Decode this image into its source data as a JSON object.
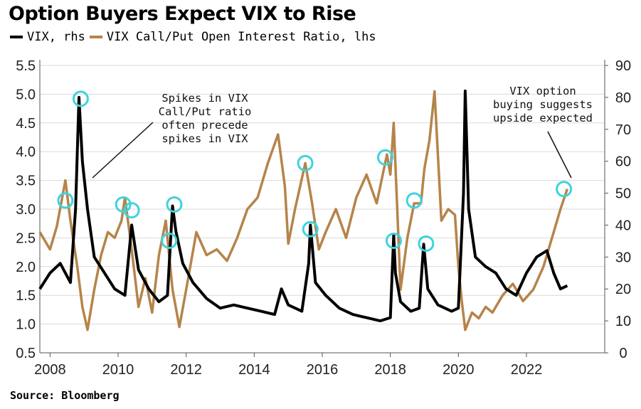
{
  "title": "Option Buyers Expect VIX to Rise",
  "legend": {
    "vix_label": "VIX, rhs",
    "ratio_label": "VIX Call/Put Open Interest Ratio, lhs"
  },
  "source": "Source: Bloomberg",
  "colors": {
    "vix": "#000000",
    "ratio": "#b5844a",
    "circle": "#3fd3dc",
    "grid": "#d9d9d9"
  },
  "annotations": {
    "left": [
      "Spikes in VIX",
      "Call/Put ratio",
      "often precede",
      "spikes in VIX"
    ],
    "right": [
      "VIX option",
      "buying suggests",
      "upside expected"
    ]
  },
  "chart_data": {
    "type": "line",
    "x_range": [
      2007.7,
      2024.3
    ],
    "x_ticks": [
      2008,
      2010,
      2012,
      2014,
      2016,
      2018,
      2020,
      2022
    ],
    "left_axis": {
      "label": "VIX Call/Put Open Interest Ratio",
      "range": [
        0.5,
        5.5
      ],
      "ticks": [
        "0.5",
        "1.0",
        "1.5",
        "2.0",
        "2.5",
        "3.0",
        "3.5",
        "4.0",
        "4.5",
        "5.0",
        "5.5"
      ]
    },
    "right_axis": {
      "label": "VIX",
      "range": [
        0,
        90
      ],
      "ticks": [
        "0",
        "10",
        "20",
        "30",
        "40",
        "50",
        "60",
        "70",
        "80",
        "90"
      ]
    },
    "series": [
      {
        "name": "VIX Call/Put Open Interest Ratio",
        "axis": "left",
        "x": [
          2007.7,
          2008.0,
          2008.2,
          2008.45,
          2008.6,
          2008.8,
          2008.95,
          2009.1,
          2009.3,
          2009.5,
          2009.7,
          2009.9,
          2010.1,
          2010.2,
          2010.4,
          2010.6,
          2010.8,
          2011.0,
          2011.2,
          2011.4,
          2011.6,
          2011.8,
          2012.0,
          2012.3,
          2012.6,
          2012.9,
          2013.2,
          2013.5,
          2013.8,
          2014.1,
          2014.4,
          2014.7,
          2014.9,
          2015.0,
          2015.2,
          2015.5,
          2015.7,
          2015.9,
          2016.1,
          2016.4,
          2016.7,
          2017.0,
          2017.3,
          2017.6,
          2017.9,
          2018.0,
          2018.1,
          2018.3,
          2018.5,
          2018.7,
          2018.9,
          2019.0,
          2019.15,
          2019.3,
          2019.5,
          2019.7,
          2019.9,
          2020.0,
          2020.1,
          2020.2,
          2020.4,
          2020.6,
          2020.8,
          2021.0,
          2021.3,
          2021.6,
          2021.9,
          2022.2,
          2022.5,
          2022.8,
          2023.0,
          2023.2
        ],
        "values": [
          2.6,
          2.3,
          2.7,
          3.5,
          2.8,
          2.0,
          1.3,
          0.9,
          1.6,
          2.2,
          2.6,
          2.5,
          2.8,
          3.2,
          2.3,
          1.3,
          1.8,
          1.2,
          2.2,
          2.8,
          1.6,
          0.95,
          1.6,
          2.6,
          2.2,
          2.3,
          2.1,
          2.5,
          3.0,
          3.2,
          3.8,
          4.3,
          3.4,
          2.4,
          3.0,
          3.8,
          3.1,
          2.3,
          2.6,
          3.0,
          2.5,
          3.2,
          3.6,
          3.1,
          3.95,
          3.6,
          4.5,
          1.6,
          2.5,
          3.1,
          3.1,
          3.7,
          4.2,
          5.05,
          2.8,
          3.0,
          2.9,
          2.0,
          1.4,
          0.9,
          1.2,
          1.1,
          1.3,
          1.2,
          1.5,
          1.7,
          1.4,
          1.6,
          2.0,
          2.6,
          3.0,
          3.35
        ]
      },
      {
        "name": "VIX",
        "axis": "right",
        "x": [
          2007.7,
          2008.0,
          2008.3,
          2008.6,
          2008.75,
          2008.85,
          2008.95,
          2009.1,
          2009.3,
          2009.6,
          2009.9,
          2010.2,
          2010.4,
          2010.6,
          2010.9,
          2011.2,
          2011.45,
          2011.6,
          2011.7,
          2011.9,
          2012.2,
          2012.6,
          2013.0,
          2013.4,
          2013.8,
          2014.2,
          2014.6,
          2014.8,
          2015.0,
          2015.4,
          2015.6,
          2015.65,
          2015.8,
          2016.1,
          2016.5,
          2016.9,
          2017.3,
          2017.7,
          2018.0,
          2018.1,
          2018.15,
          2018.3,
          2018.6,
          2018.85,
          2018.98,
          2019.1,
          2019.4,
          2019.8,
          2020.0,
          2020.15,
          2020.2,
          2020.3,
          2020.5,
          2020.8,
          2021.1,
          2021.4,
          2021.7,
          2022.0,
          2022.3,
          2022.6,
          2022.8,
          2023.0,
          2023.2
        ],
        "values": [
          20,
          25,
          28,
          22,
          45,
          80,
          60,
          45,
          30,
          25,
          20,
          18,
          40,
          26,
          20,
          16,
          18,
          46,
          38,
          28,
          22,
          17,
          14,
          15,
          14,
          13,
          12,
          20,
          15,
          13,
          28,
          40,
          22,
          18,
          14,
          12,
          11,
          10,
          11,
          37,
          25,
          16,
          13,
          14,
          34,
          20,
          15,
          13,
          14,
          50,
          82,
          45,
          30,
          27,
          25,
          20,
          18,
          25,
          30,
          32,
          25,
          20,
          21
        ]
      }
    ],
    "highlighted_points": [
      {
        "x": 2008.45,
        "y": 3.15
      },
      {
        "x": 2008.9,
        "y": 4.92
      },
      {
        "x": 2010.15,
        "y": 3.08
      },
      {
        "x": 2010.4,
        "y": 2.98
      },
      {
        "x": 2011.5,
        "y": 2.45
      },
      {
        "x": 2011.65,
        "y": 3.08
      },
      {
        "x": 2015.5,
        "y": 3.8
      },
      {
        "x": 2015.65,
        "y": 2.65
      },
      {
        "x": 2017.85,
        "y": 3.9
      },
      {
        "x": 2018.1,
        "y": 2.45
      },
      {
        "x": 2018.7,
        "y": 3.15
      },
      {
        "x": 2019.05,
        "y": 2.4
      },
      {
        "x": 2023.1,
        "y": 3.35
      }
    ]
  }
}
